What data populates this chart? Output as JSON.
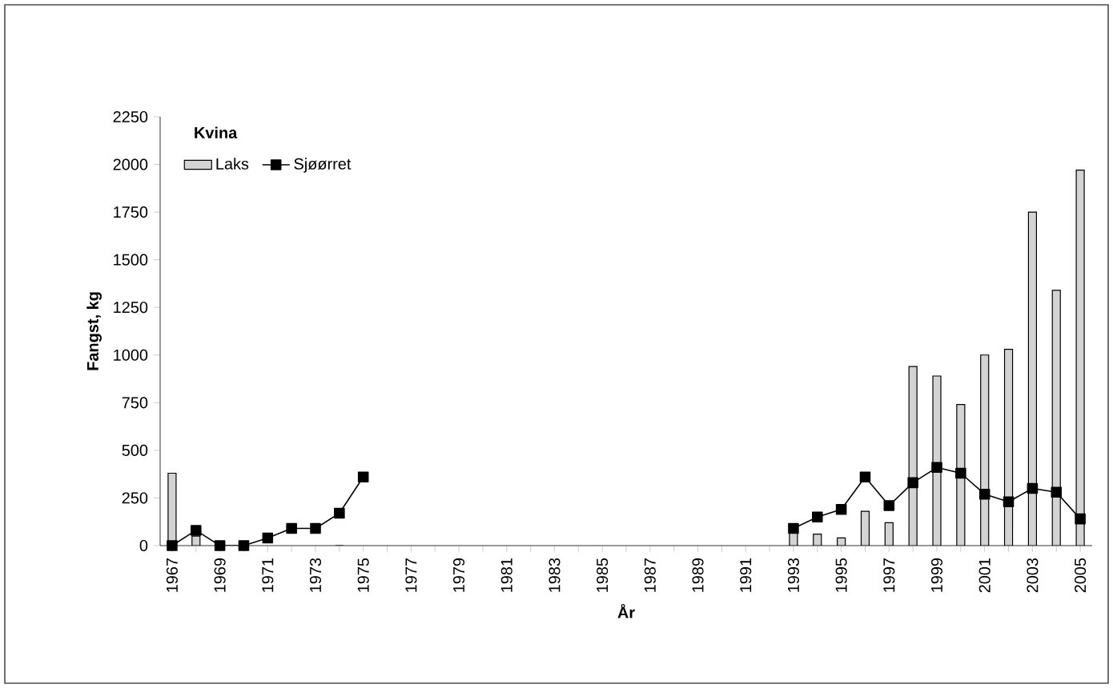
{
  "chart_data": {
    "type": "bar",
    "legend_title": "Kvina",
    "xlabel": "År",
    "ylabel": "Fangst, kg",
    "categories": [
      "1967",
      null,
      "1969",
      null,
      "1971",
      null,
      "1973",
      null,
      "1975",
      null,
      "1977",
      null,
      "1979",
      null,
      "1981",
      null,
      "1983",
      null,
      "1985",
      null,
      "1987",
      null,
      "1989",
      null,
      "1991",
      null,
      "1993",
      null,
      "1995",
      null,
      "1997",
      null,
      "1999",
      null,
      "2001",
      null,
      "2003",
      null,
      "2005"
    ],
    "series": [
      {
        "name": "Laks",
        "color": "#d3d3d3",
        "values": [
          380,
          50,
          null,
          null,
          null,
          null,
          null,
          0,
          null,
          null,
          null,
          null,
          null,
          null,
          null,
          null,
          null,
          null,
          null,
          null,
          null,
          null,
          null,
          null,
          null,
          null,
          80,
          60,
          40,
          180,
          120,
          940,
          890,
          740,
          1000,
          1030,
          1750,
          1340,
          1970
        ]
      },
      {
        "name": "Sjøørret",
        "type": "line",
        "color": "#000000",
        "marker": "square",
        "values": [
          0,
          80,
          0,
          0,
          40,
          90,
          90,
          170,
          360,
          null,
          null,
          null,
          null,
          null,
          null,
          null,
          null,
          null,
          null,
          null,
          null,
          null,
          null,
          null,
          null,
          null,
          90,
          150,
          190,
          360,
          210,
          330,
          410,
          380,
          270,
          230,
          300,
          280,
          140
        ]
      }
    ],
    "ylim": [
      0,
      2250
    ],
    "yticks": [
      0,
      250,
      500,
      750,
      1000,
      1250,
      1500,
      1750,
      2000,
      2250
    ],
    "legend": "top left"
  }
}
